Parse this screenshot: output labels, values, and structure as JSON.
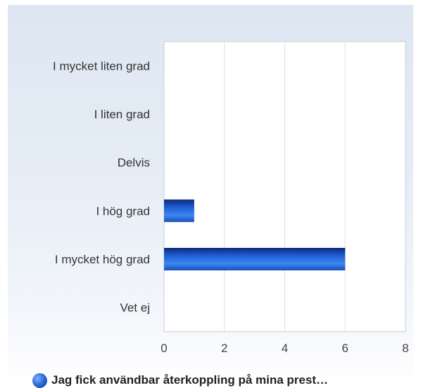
{
  "chart_data": {
    "type": "bar",
    "orientation": "horizontal",
    "categories": [
      "I mycket liten grad",
      "I liten grad",
      "Delvis",
      "I hög grad",
      "I mycket hög grad",
      "Vet ej"
    ],
    "series": [
      {
        "name": "Jag fick användbar återkoppling på mina prest…",
        "values": [
          0,
          0,
          0,
          1,
          6,
          0
        ],
        "color": "#1f5fd6"
      }
    ],
    "x_ticks": [
      "0",
      "2",
      "4",
      "6",
      "8"
    ],
    "xlim": [
      0,
      8
    ],
    "grid": true,
    "legend_position": "bottom"
  }
}
